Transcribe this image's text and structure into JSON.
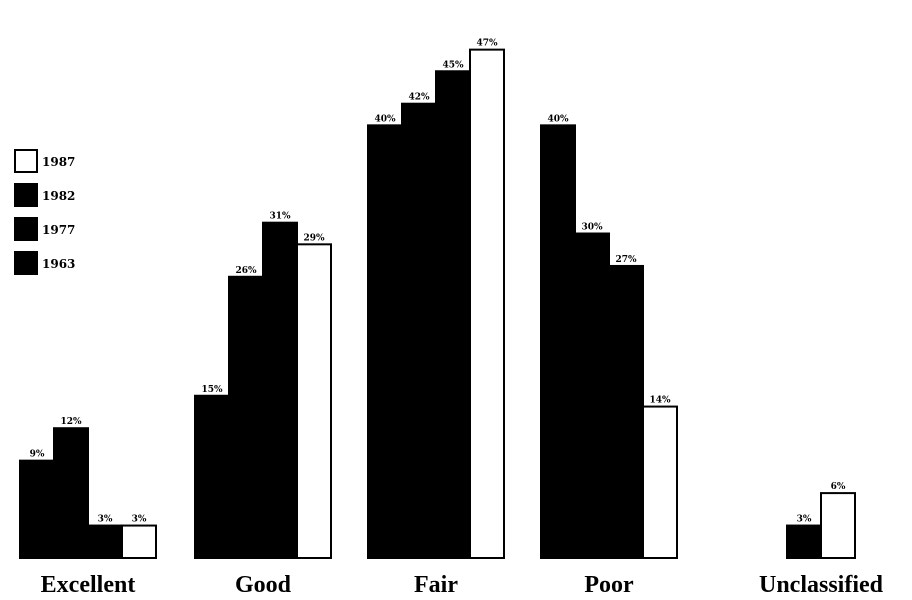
{
  "chart_data": {
    "type": "bar",
    "title": "",
    "xlabel": "",
    "ylabel": "",
    "ylim": [
      0,
      49
    ],
    "grid": false,
    "legend_placement": "left",
    "categories": [
      "Excellent",
      "Good",
      "Fair",
      "Poor",
      "Unclassified"
    ],
    "series": [
      {
        "name": "1963",
        "color": "#000000",
        "values": [
          9,
          15,
          40,
          40,
          null
        ]
      },
      {
        "name": "1977",
        "color": "#000000",
        "values": [
          12,
          26,
          42,
          30,
          null
        ]
      },
      {
        "name": "1982",
        "color": "#000000",
        "values": [
          3,
          31,
          45,
          27,
          3
        ]
      },
      {
        "name": "1987",
        "color": "#ffffff",
        "values": [
          3,
          29,
          47,
          14,
          6
        ]
      }
    ],
    "value_labels": [
      [
        "9%",
        "15%",
        "40%",
        "40%",
        ""
      ],
      [
        "12%",
        "26%",
        "42%",
        "30%",
        ""
      ],
      [
        "3%",
        "31%",
        "45%",
        "27%",
        "3%"
      ],
      [
        "3%",
        "29%",
        "47%",
        "14%",
        "6%"
      ]
    ],
    "legend": [
      {
        "label": "1987",
        "color": "#ffffff"
      },
      {
        "label": "1982",
        "color": "#000000"
      },
      {
        "label": "1977",
        "color": "#000000"
      },
      {
        "label": "1963",
        "color": "#000000"
      }
    ]
  }
}
